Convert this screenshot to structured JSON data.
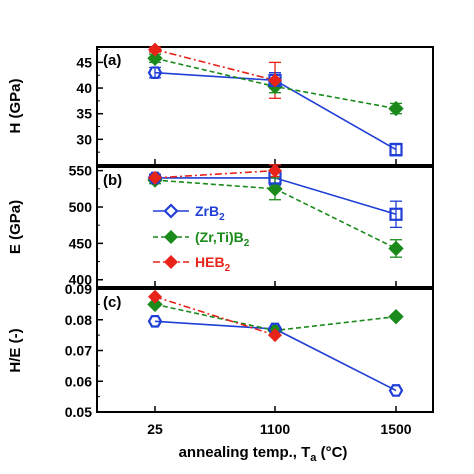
{
  "chart_data": {
    "type": "line",
    "x_categories": [
      "25",
      "1100",
      "1500"
    ],
    "xlabel_main": "annealing temp., T",
    "xlabel_sub": "a",
    "xlabel_unit": " (°C)",
    "colors": {
      "ZrB2": "#1f3fd6",
      "ZrTiB2": "#1a8a1a",
      "HEB2": "#e8231a"
    },
    "legend": [
      {
        "key": "ZrB2",
        "label": "ZrB",
        "sub": "2",
        "pre": ""
      },
      {
        "key": "ZrTiB2",
        "label": "(Zr,Ti)B",
        "sub": "2",
        "pre": ""
      },
      {
        "key": "HEB2",
        "label": "HEB",
        "sub": "2",
        "pre": ""
      }
    ],
    "panels": [
      {
        "id": "a",
        "label": "(a)",
        "ylabel": "H (GPa)",
        "ylim": [
          25,
          48
        ],
        "yticks": [
          30,
          35,
          40,
          45
        ],
        "series": [
          {
            "key": "ZrB2",
            "values": [
              43.0,
              41.5,
              28.0
            ],
            "errors": [
              1.0,
              1.5,
              1.2
            ]
          },
          {
            "key": "ZrTiB2",
            "values": [
              45.8,
              40.3,
              36.0
            ],
            "errors": [
              0.8,
              1.2,
              1.0
            ]
          },
          {
            "key": "HEB2",
            "values": [
              47.5,
              41.5,
              null
            ],
            "errors": [
              0.5,
              3.5,
              0
            ]
          }
        ]
      },
      {
        "id": "b",
        "label": "(b)",
        "ylabel": "E (GPa)",
        "ylim": [
          390,
          555
        ],
        "yticks": [
          400,
          450,
          500,
          550
        ],
        "series": [
          {
            "key": "ZrB2",
            "values": [
              540,
              540,
              490
            ],
            "errors": [
              5,
              10,
              18
            ]
          },
          {
            "key": "ZrTiB2",
            "values": [
              537,
              525,
              443
            ],
            "errors": [
              5,
              15,
              12
            ]
          },
          {
            "key": "HEB2",
            "values": [
              540,
              550,
              null
            ],
            "errors": [
              4,
              8,
              0
            ]
          }
        ]
      },
      {
        "id": "c",
        "label": "(c)",
        "ylabel": "H/E (-)",
        "ylim": [
          0.05,
          0.09
        ],
        "yticks": [
          0.05,
          0.06,
          0.07,
          0.08,
          0.09
        ],
        "series": [
          {
            "key": "ZrB2",
            "values": [
              0.0795,
              0.077,
              0.057
            ]
          },
          {
            "key": "ZrTiB2",
            "values": [
              0.085,
              0.0765,
              0.081
            ]
          },
          {
            "key": "HEB2",
            "values": [
              0.0875,
              0.075,
              null
            ]
          }
        ]
      }
    ]
  }
}
